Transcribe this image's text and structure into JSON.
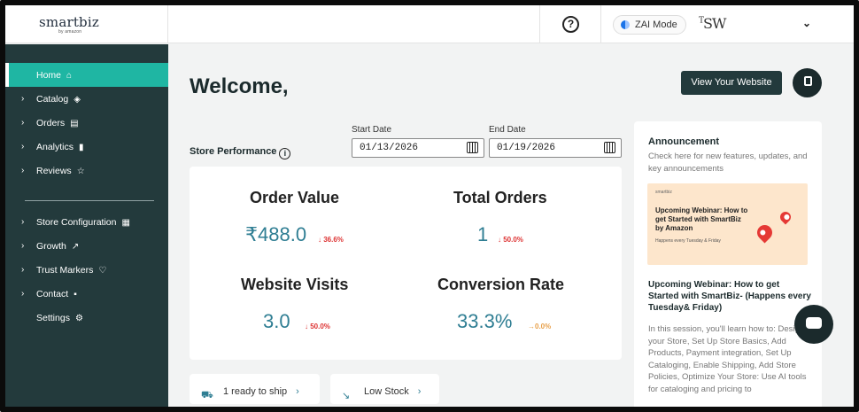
{
  "header": {
    "logo": {
      "main": "smartbiz",
      "sub": "by amazon"
    },
    "zai_mode": "ZAI Mode",
    "avatar_initials": "SW",
    "help_icon": "help-icon",
    "account_chevron": "chevron-down-icon"
  },
  "sidebar": {
    "items": [
      {
        "label": "Home",
        "icon": "⌂",
        "active": true,
        "arrow": false
      },
      {
        "label": "Catalog",
        "icon": "◈",
        "arrow": true
      },
      {
        "label": "Orders",
        "icon": "▤",
        "arrow": true
      },
      {
        "label": "Analytics",
        "icon": "▮",
        "arrow": true
      },
      {
        "label": "Reviews",
        "icon": "☆",
        "arrow": true
      },
      {
        "label": "Store Configuration",
        "icon": "▦",
        "arrow": true
      },
      {
        "label": "Growth",
        "icon": "↗",
        "arrow": true
      },
      {
        "label": "Trust Markers",
        "icon": "♡",
        "arrow": true
      },
      {
        "label": "Contact",
        "icon": "▪",
        "arrow": true
      },
      {
        "label": "Settings",
        "icon": "⚙",
        "arrow": false
      }
    ]
  },
  "main": {
    "welcome": "Welcome,",
    "view_website": "View Your Website",
    "store_performance": "Store Performance",
    "start_date": {
      "label": "Start Date",
      "value": "01/13/2026"
    },
    "end_date": {
      "label": "End Date",
      "value": "01/19/2026"
    },
    "metrics": [
      {
        "title": "Order Value",
        "value": "₹488.0",
        "change": "↓ 36.6%"
      },
      {
        "title": "Total Orders",
        "value": "1",
        "change": "↓ 50.0%"
      },
      {
        "title": "Website Visits",
        "value": "3.0",
        "change": "↓ 50.0%"
      },
      {
        "title": "Conversion Rate",
        "value": "33.3%",
        "change": "→0.0%"
      }
    ],
    "chips": [
      {
        "label": "1 ready to ship"
      },
      {
        "label": "Low Stock"
      }
    ]
  },
  "announcement": {
    "heading": "Announcement",
    "subtitle": "Check here for new features, updates, and key announcements",
    "banner": {
      "mini_logo": "smartbiz",
      "title": "Upcoming Webinar: How to get Started with SmartBiz by Amazon",
      "schedule": "Happens every Tuesday & Friday"
    },
    "title": "Upcoming Webinar: How to get Started with SmartBiz- (Happens every Tuesday& Friday)",
    "body": "In this session, you'll learn how to: Design your Store, Set Up Store Basics, Add Products, Payment integration, Set Up Cataloging, Enable Shipping, Add Store Policies, Optimize Your Store: Use AI tools for cataloging and pricing to"
  },
  "colors": {
    "sidebar_bg": "#233a3c",
    "active_item": "#1fb6a3",
    "metric_value": "#2f7e93",
    "negative_change": "#dd3333",
    "neutral_change": "#e8a04a"
  }
}
